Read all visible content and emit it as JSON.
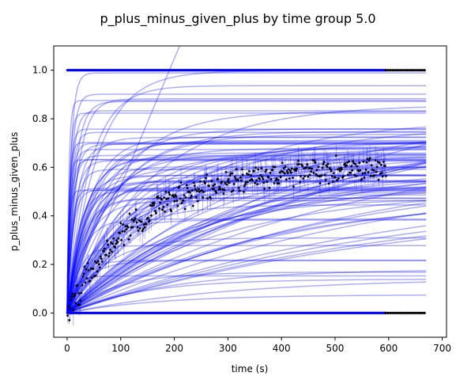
{
  "chart_data": {
    "type": "line",
    "title": "p_plus_minus_given_plus by time group 5.0",
    "xlabel": "time (s)",
    "ylabel": "p_plus_minus_given_plus",
    "xlim": [
      -25,
      708
    ],
    "ylim": [
      -0.1,
      1.1
    ],
    "x_ticks": [
      0,
      100,
      200,
      300,
      400,
      500,
      600,
      700
    ],
    "x_tick_labels": [
      "0",
      "100",
      "200",
      "300",
      "400",
      "500",
      "600",
      "700"
    ],
    "y_ticks": [
      0.0,
      0.2,
      0.4,
      0.6,
      0.8,
      1.0
    ],
    "y_tick_labels": [
      "0.0",
      "0.2",
      "0.4",
      "0.6",
      "0.8",
      "1.0"
    ],
    "grid": false,
    "colors": {
      "curves": "#0000ff",
      "observed": "#000000",
      "errorbars": "#0000ff"
    },
    "observed_mean": {
      "description_free": true,
      "x_range": [
        0,
        595
      ],
      "plateau": 0.6,
      "rate_per_s": 0.0075,
      "noise": 0.04
    },
    "observed_binary": {
      "x_blue_range": [
        0,
        595
      ],
      "x_black_range": [
        595,
        670
      ],
      "values": [
        0.0,
        1.0
      ]
    },
    "fitted_curves": {
      "count": 110,
      "x_range": [
        0,
        670
      ],
      "plateau_range": [
        0.05,
        1.0
      ],
      "rate_range_per_s": [
        0.0015,
        0.3
      ],
      "outlier_line": {
        "x": [
          0,
          210
        ],
        "y": [
          0.0,
          1.1
        ]
      }
    }
  }
}
